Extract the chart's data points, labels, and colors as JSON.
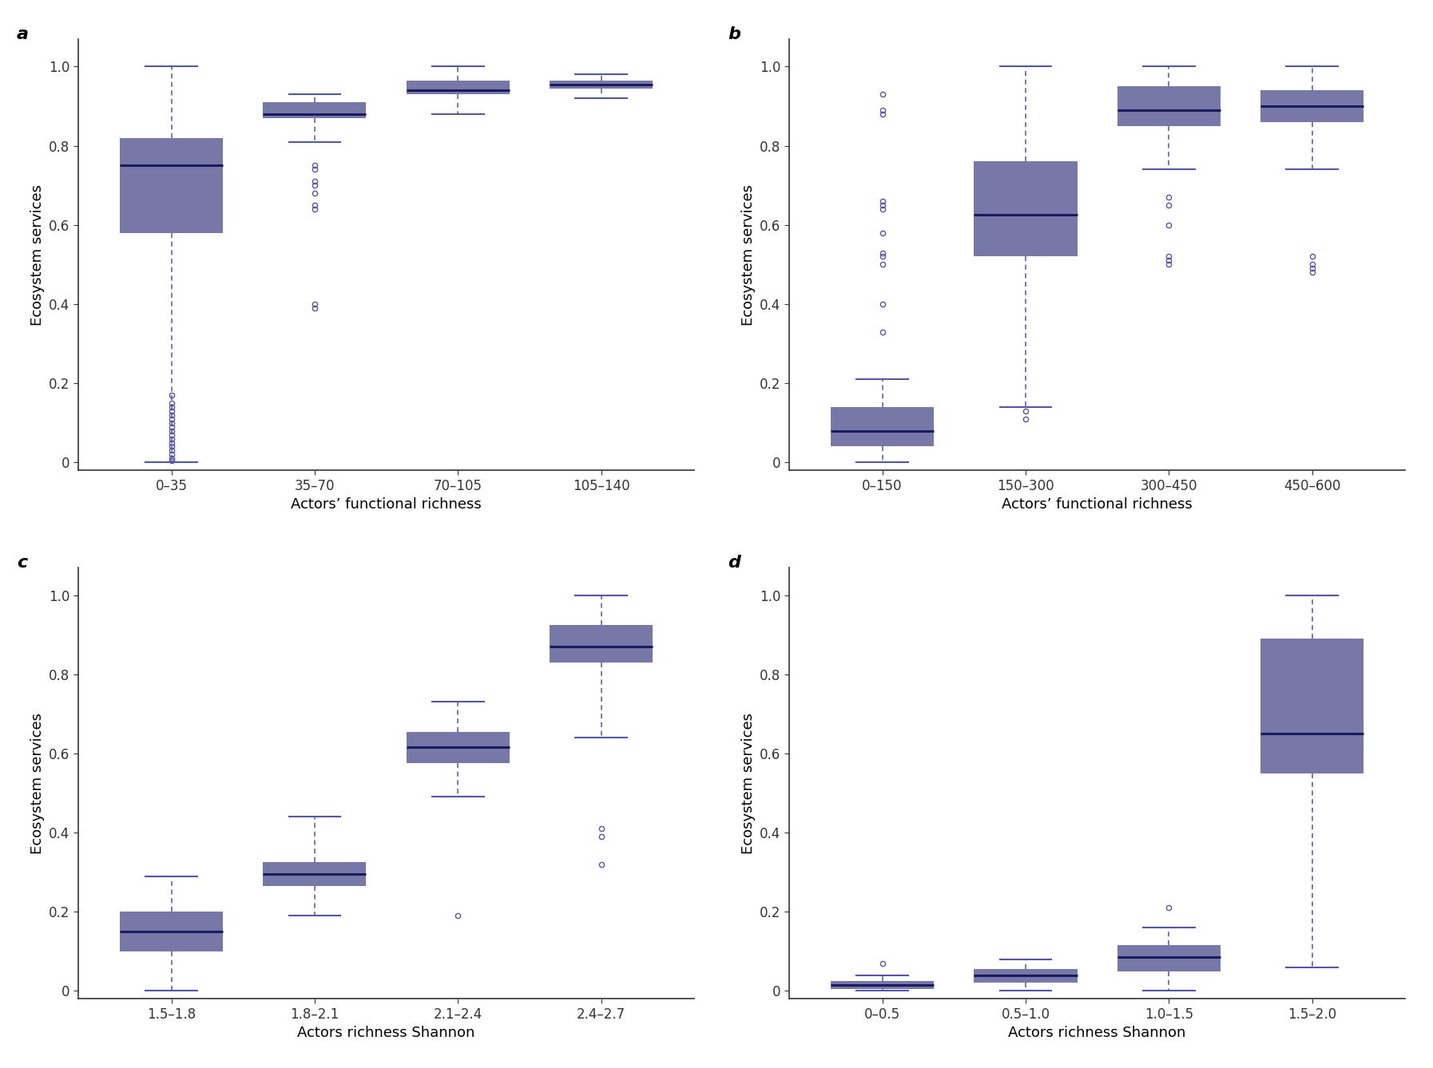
{
  "box_color": "#7878a8",
  "box_edge_color": "#7878a8",
  "median_color": "#1a1a5e",
  "whisker_color": "#5555aa",
  "outlier_color": "#5555aa",
  "background_color": "#ffffff",
  "panels": [
    {
      "label": "a",
      "xlabel": "Actors’ functional richness",
      "ylabel": "Ecosystem services",
      "categories": [
        "0–35",
        "35–70",
        "70–105",
        "105–140"
      ],
      "stats": [
        {
          "med": 0.75,
          "q1": 0.58,
          "q3": 0.82,
          "whislo": 0.0,
          "whishi": 1.0,
          "outliers": [
            0.17,
            0.15,
            0.14,
            0.13,
            0.12,
            0.11,
            0.1,
            0.09,
            0.08,
            0.07,
            0.06,
            0.05,
            0.04,
            0.03,
            0.02,
            0.01,
            0.005
          ]
        },
        {
          "med": 0.88,
          "q1": 0.87,
          "q3": 0.91,
          "whislo": 0.81,
          "whishi": 0.93,
          "outliers": [
            0.4,
            0.39,
            0.75,
            0.74,
            0.71,
            0.7,
            0.68,
            0.65,
            0.64
          ]
        },
        {
          "med": 0.94,
          "q1": 0.93,
          "q3": 0.965,
          "whislo": 0.88,
          "whishi": 1.0,
          "outliers": []
        },
        {
          "med": 0.955,
          "q1": 0.945,
          "q3": 0.965,
          "whislo": 0.92,
          "whishi": 0.98,
          "outliers": []
        }
      ]
    },
    {
      "label": "b",
      "xlabel": "Actors’ functional richness",
      "ylabel": "Ecosystem services",
      "categories": [
        "0–150",
        "150–300",
        "300–450",
        "450–600"
      ],
      "stats": [
        {
          "med": 0.08,
          "q1": 0.04,
          "q3": 0.14,
          "whislo": 0.0,
          "whishi": 0.21,
          "outliers": [
            0.93,
            0.89,
            0.88,
            0.66,
            0.65,
            0.64,
            0.58,
            0.53,
            0.52,
            0.5,
            0.4,
            0.33
          ]
        },
        {
          "med": 0.625,
          "q1": 0.52,
          "q3": 0.76,
          "whislo": 0.14,
          "whishi": 1.0,
          "outliers": [
            0.13,
            0.11
          ]
        },
        {
          "med": 0.89,
          "q1": 0.85,
          "q3": 0.95,
          "whislo": 0.74,
          "whishi": 1.0,
          "outliers": [
            0.67,
            0.65,
            0.6,
            0.52,
            0.51,
            0.5
          ]
        },
        {
          "med": 0.9,
          "q1": 0.86,
          "q3": 0.94,
          "whislo": 0.74,
          "whishi": 1.0,
          "outliers": [
            0.52,
            0.5,
            0.49,
            0.48
          ]
        }
      ]
    },
    {
      "label": "c",
      "xlabel": "Actors richness Shannon",
      "ylabel": "Ecosystem services",
      "categories": [
        "1.5–1.8",
        "1.8–2.1",
        "2.1–2.4",
        "2.4–2.7"
      ],
      "stats": [
        {
          "med": 0.15,
          "q1": 0.1,
          "q3": 0.2,
          "whislo": 0.0,
          "whishi": 0.29,
          "outliers": []
        },
        {
          "med": 0.295,
          "q1": 0.265,
          "q3": 0.325,
          "whislo": 0.19,
          "whishi": 0.44,
          "outliers": []
        },
        {
          "med": 0.615,
          "q1": 0.575,
          "q3": 0.655,
          "whislo": 0.49,
          "whishi": 0.73,
          "outliers": [
            0.19
          ]
        },
        {
          "med": 0.87,
          "q1": 0.83,
          "q3": 0.925,
          "whislo": 0.64,
          "whishi": 1.0,
          "outliers": [
            0.41,
            0.39,
            0.32
          ]
        }
      ]
    },
    {
      "label": "d",
      "xlabel": "Actors richness Shannon",
      "ylabel": "Ecosystem services",
      "categories": [
        "0–0.5",
        "0.5–1.0",
        "1.0–1.5",
        "1.5–2.0"
      ],
      "stats": [
        {
          "med": 0.015,
          "q1": 0.005,
          "q3": 0.025,
          "whislo": 0.0,
          "whishi": 0.04,
          "outliers": [
            0.07
          ]
        },
        {
          "med": 0.04,
          "q1": 0.02,
          "q3": 0.055,
          "whislo": 0.0,
          "whishi": 0.08,
          "outliers": []
        },
        {
          "med": 0.085,
          "q1": 0.05,
          "q3": 0.115,
          "whislo": 0.0,
          "whishi": 0.16,
          "outliers": [
            0.21
          ]
        },
        {
          "med": 0.65,
          "q1": 0.55,
          "q3": 0.89,
          "whislo": 0.06,
          "whishi": 1.0,
          "outliers": []
        }
      ]
    }
  ]
}
